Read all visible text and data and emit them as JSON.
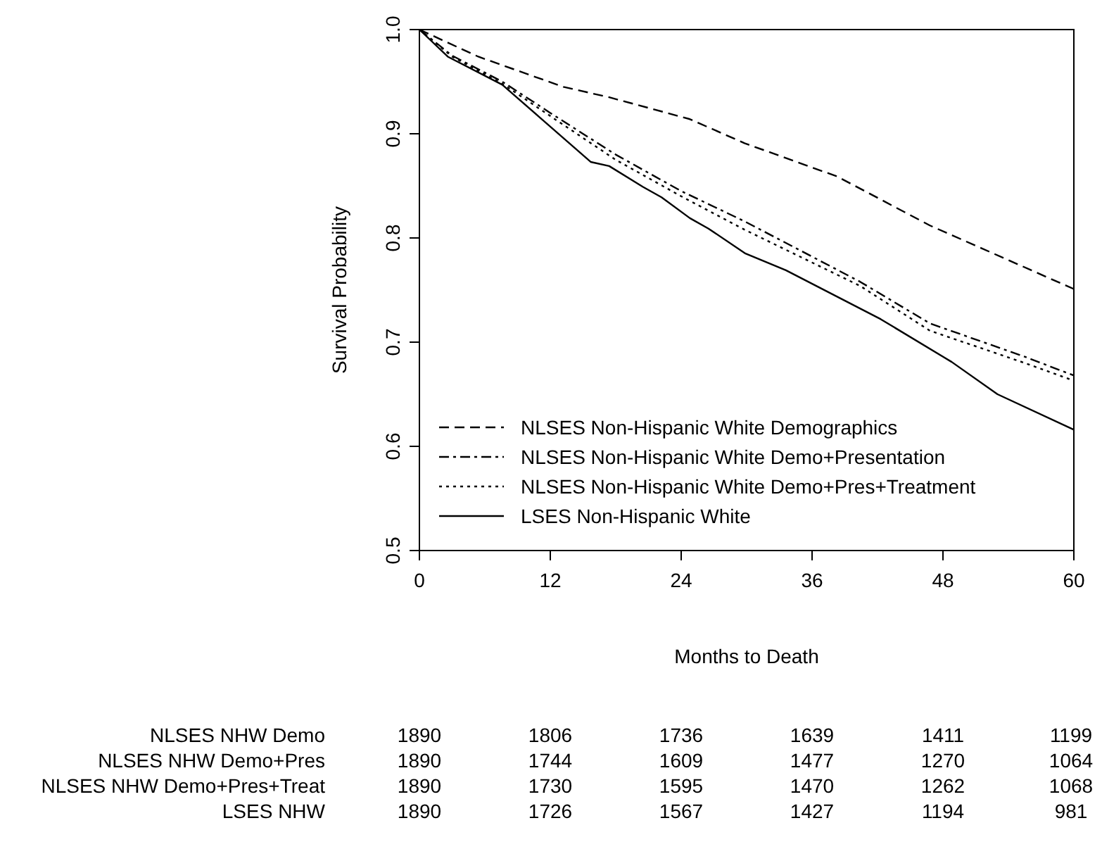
{
  "chart_data": {
    "type": "step",
    "xlabel": "Months to Death",
    "ylabel": "Survival Probability",
    "xlim": [
      0,
      60
    ],
    "ylim": [
      0.5,
      1.0
    ],
    "xticks": [
      0,
      12,
      24,
      36,
      48,
      60
    ],
    "yticks": [
      0.5,
      0.6,
      0.7,
      0.8,
      0.9,
      {
        "value": 1,
        "label": "1.0"
      }
    ],
    "grid": false,
    "legend": "bottom left",
    "marker": "none",
    "series": [
      {
        "name": "NLSES Non-Hispanic White Demographics",
        "color": "#000000",
        "line_style": "dashed",
        "x": [
          0,
          5.4,
          13.2,
          17.4,
          21.3,
          24.8,
          29.8,
          38.3,
          46.8,
          60
        ],
        "values": [
          1.0,
          0.974,
          0.945,
          0.935,
          0.924,
          0.914,
          0.891,
          0.859,
          0.812,
          0.751
        ]
      },
      {
        "name": "NLSES Non-Hispanic White Demo+Presentation",
        "color": "#000000",
        "line_style": "dashdot",
        "x": [
          0,
          3,
          7.6,
          12,
          18,
          24,
          29.8,
          40.4,
          46.8,
          55.5,
          60
        ],
        "values": [
          1.0,
          0.975,
          0.95,
          0.92,
          0.88,
          0.845,
          0.816,
          0.758,
          0.718,
          0.686,
          0.668
        ]
      },
      {
        "name": "NLSES Non-Hispanic White Demo+Pres+Treatment",
        "color": "#000000",
        "line_style": "dotted",
        "x": [
          0,
          3,
          7.6,
          12,
          18,
          24,
          29.8,
          40.4,
          46.8,
          55.5,
          60
        ],
        "values": [
          1.0,
          0.974,
          0.948,
          0.917,
          0.875,
          0.84,
          0.808,
          0.754,
          0.711,
          0.68,
          0.663
        ]
      },
      {
        "name": "LSES Non-Hispanic White",
        "color": "#000000",
        "line_style": "solid",
        "x": [
          0,
          2.6,
          7.6,
          11,
          15.7,
          17.4,
          20.5,
          22.2,
          24.8,
          26.5,
          29.9,
          33.6,
          42.3,
          48.8,
          53,
          60
        ],
        "values": [
          1.0,
          0.974,
          0.947,
          0.916,
          0.873,
          0.869,
          0.849,
          0.839,
          0.819,
          0.809,
          0.785,
          0.769,
          0.722,
          0.681,
          0.65,
          0.616
        ]
      }
    ],
    "annotations": [
      "NLSES NHW Demo",
      "1890",
      "1806",
      "1736",
      "1639",
      "1411",
      "1199",
      "NLSES NHW Demo+Pres",
      "1890",
      "1744",
      "1609",
      "1477",
      "1270",
      "1064",
      "NLSES NHW Demo+Pres+Treat",
      "1890",
      "1730",
      "1595",
      "1470",
      "1262",
      "1068",
      "LSES NHW",
      "1890",
      "1726",
      "1567",
      "1427",
      "1194",
      "981"
    ]
  }
}
